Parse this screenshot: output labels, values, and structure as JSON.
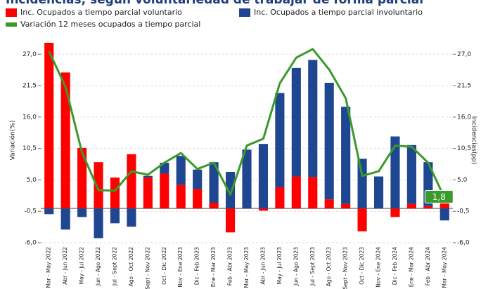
{
  "chart_data": {
    "type": "bar",
    "title": "Incidencias, según voluntariedad de trabajar de forma parcial",
    "y_label": "Variación(%)",
    "y2_label": "Incidencias(pp)",
    "categories": [
      "Mar - May 2022",
      "Abr - Jun 2022",
      "May - Jul 2022",
      "Jun - Ago 2022",
      "Jul - Sept 2022",
      "Ago - Oct 2022",
      "Sept - Nov 2022",
      "Oct - Dic 2022",
      "Nov - Ene 2023",
      "Dic - Feb 2023",
      "Ene - Mar 2023",
      "Feb - Abr 2023",
      "Mar - May 2023",
      "Abr - Jun 2023",
      "May - Jul 2023",
      "Jun - Ago 2023",
      "Jul - Sept 2023",
      "Ago - Oct 2023",
      "Sept - Nov 2023",
      "Oct - Dic 2023",
      "Nov - Ene 2024",
      "Dic - Feb 2024",
      "Ene - Mar 2024",
      "Feb - Abr 2024",
      "Mar - May 2024"
    ],
    "series": [
      {
        "name": "Inc. Ocupados a tiempo parcial voluntario",
        "color": "#ff0000",
        "type": "bar",
        "axis": "y2",
        "values": [
          29.0,
          23.8,
          10.6,
          8.1,
          5.4,
          9.5,
          5.4,
          6.1,
          4.1,
          3.4,
          1.0,
          -4.2,
          0.0,
          -0.4,
          3.7,
          5.6,
          5.5,
          1.6,
          0.8,
          -4.0,
          0.0,
          -1.5,
          0.8,
          0.4,
          2.1
        ]
      },
      {
        "name": "Inc. Ocupados a tiempo parcial involuntario",
        "color": "#1f4690",
        "type": "bar",
        "axis": "y2",
        "values": [
          -1.0,
          -3.7,
          -1.5,
          -5.2,
          -2.6,
          -3.2,
          0.3,
          1.9,
          5.1,
          3.4,
          7.1,
          6.4,
          10.3,
          11.3,
          16.5,
          19.0,
          20.5,
          20.4,
          17.0,
          8.7,
          5.6,
          12.6,
          10.3,
          7.7,
          -2.1
        ]
      },
      {
        "name": "Variación 12 meses ocupados a tiempo parcial",
        "color": "#3a9a2a",
        "type": "line",
        "values": [
          27.5,
          21.3,
          9.8,
          3.2,
          3.1,
          6.5,
          5.9,
          8.0,
          9.7,
          6.9,
          8.0,
          2.4,
          11.0,
          12.2,
          21.9,
          26.4,
          27.9,
          24.3,
          19.3,
          5.7,
          6.5,
          11.0,
          10.8,
          8.0,
          1.8
        ],
        "value_labels": [
          null,
          null,
          null,
          null,
          null,
          null,
          null,
          null,
          null,
          null,
          null,
          null,
          null,
          null,
          null,
          null,
          null,
          null,
          null,
          null,
          null,
          null,
          null,
          null,
          "1,8"
        ]
      }
    ],
    "ylim": [
      -6.0,
      29.0
    ],
    "y2lim": [
      -6.0,
      29.0
    ],
    "yticks": [
      {
        "value": -6.0,
        "label": "-6,0"
      },
      {
        "value": -0.5,
        "label": "-0,5"
      },
      {
        "value": 5.0,
        "label": "5,0"
      },
      {
        "value": 10.5,
        "label": "10,5"
      },
      {
        "value": 16.0,
        "label": "16,0"
      },
      {
        "value": 21.5,
        "label": "21,5"
      },
      {
        "value": 27.0,
        "label": "27,0"
      }
    ],
    "y2ticks": [
      {
        "value": -6.0,
        "label": "-6,0"
      },
      {
        "value": -0.5,
        "label": "-0,5"
      },
      {
        "value": 5.0,
        "label": "5,0"
      },
      {
        "value": 10.5,
        "label": "10,5"
      },
      {
        "value": 16.0,
        "label": "16,0"
      },
      {
        "value": 21.5,
        "label": "21,5"
      },
      {
        "value": 27.0,
        "label": "27,0"
      }
    ],
    "grid": true
  }
}
